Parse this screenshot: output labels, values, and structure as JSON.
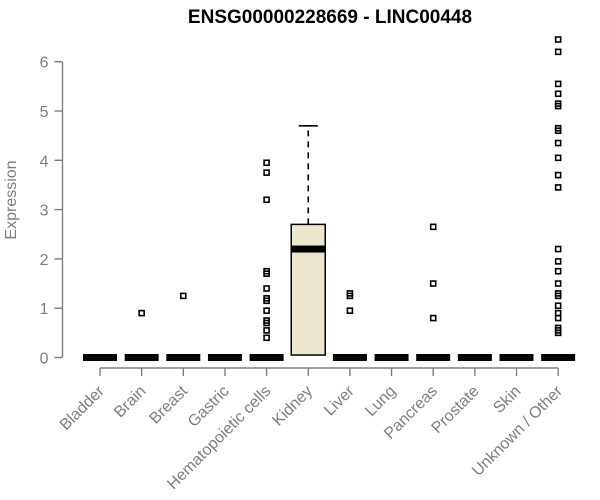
{
  "chart_data": {
    "type": "boxplot",
    "title": "ENSG00000228669 - LINC00448",
    "xlabel": "",
    "ylabel": "Expression",
    "ylim": [
      0,
      6.6
    ],
    "yticks": [
      0,
      1,
      2,
      3,
      4,
      5,
      6
    ],
    "grid": false,
    "legend": "none",
    "categories": [
      "Bladder",
      "Brain",
      "Breast",
      "Gastric",
      "Hematopoietic cells",
      "Kidney",
      "Liver",
      "Lung",
      "Pancreas",
      "Prostate",
      "Skin",
      "Unknown / Other"
    ],
    "colors": {
      "box_fill": "#ece7ce",
      "box_border": "#000000",
      "median": "#000000",
      "whisker": "#000000",
      "outlier": "#000000",
      "axis": "#7e7e7e",
      "tick_label": "#7e7e7e",
      "title": "#000000",
      "background": "#ffffff"
    },
    "boxes": [
      {
        "category": "Bladder",
        "q1": 0,
        "median": 0,
        "q3": 0,
        "whisker_low": 0,
        "whisker_high": 0,
        "outliers": []
      },
      {
        "category": "Brain",
        "q1": 0,
        "median": 0,
        "q3": 0,
        "whisker_low": 0,
        "whisker_high": 0,
        "outliers": [
          0.9
        ]
      },
      {
        "category": "Breast",
        "q1": 0,
        "median": 0,
        "q3": 0,
        "whisker_low": 0,
        "whisker_high": 0,
        "outliers": [
          1.25
        ]
      },
      {
        "category": "Gastric",
        "q1": 0,
        "median": 0,
        "q3": 0,
        "whisker_low": 0,
        "whisker_high": 0,
        "outliers": []
      },
      {
        "category": "Hematopoietic cells",
        "q1": 0,
        "median": 0,
        "q3": 0,
        "whisker_low": 0,
        "whisker_high": 0,
        "outliers": [
          3.95,
          3.75,
          3.2,
          1.75,
          1.7,
          1.4,
          1.2,
          1.15,
          0.95,
          0.75,
          0.7,
          0.55,
          0.4
        ]
      },
      {
        "category": "Kidney",
        "q1": 0.05,
        "median": 2.2,
        "q3": 2.7,
        "whisker_low": 0.05,
        "whisker_high": 4.7,
        "outliers": []
      },
      {
        "category": "Liver",
        "q1": 0,
        "median": 0,
        "q3": 0,
        "whisker_low": 0,
        "whisker_high": 0,
        "outliers": [
          1.3,
          1.25,
          0.95
        ]
      },
      {
        "category": "Lung",
        "q1": 0,
        "median": 0,
        "q3": 0,
        "whisker_low": 0,
        "whisker_high": 0,
        "outliers": []
      },
      {
        "category": "Pancreas",
        "q1": 0,
        "median": 0,
        "q3": 0,
        "whisker_low": 0,
        "whisker_high": 0,
        "outliers": [
          2.65,
          1.5,
          0.8
        ]
      },
      {
        "category": "Prostate",
        "q1": 0,
        "median": 0,
        "q3": 0,
        "whisker_low": 0,
        "whisker_high": 0,
        "outliers": []
      },
      {
        "category": "Skin",
        "q1": 0,
        "median": 0,
        "q3": 0,
        "whisker_low": 0,
        "whisker_high": 0,
        "outliers": []
      },
      {
        "category": "Unknown / Other",
        "q1": 0,
        "median": 0,
        "q3": 0,
        "whisker_low": 0,
        "whisker_high": 0,
        "outliers": [
          6.45,
          6.2,
          5.55,
          5.35,
          5.15,
          5.1,
          4.65,
          4.6,
          4.35,
          4.05,
          3.7,
          3.45,
          2.2,
          1.95,
          1.75,
          1.5,
          1.3,
          1.25,
          1.05,
          0.9,
          0.8,
          0.6,
          0.55,
          0.5
        ]
      }
    ]
  }
}
